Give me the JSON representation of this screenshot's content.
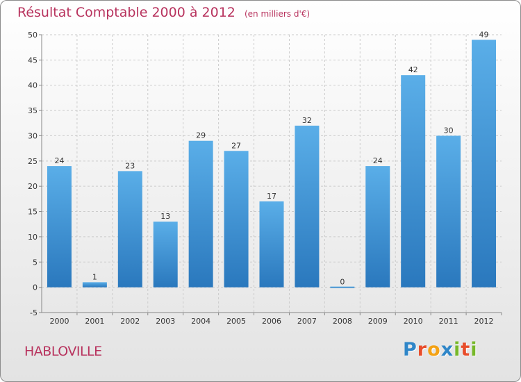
{
  "chart_data": {
    "type": "bar",
    "title": "Résultat Comptable 2000 à 2012",
    "subtitle": "(en milliers d'€)",
    "categories": [
      "2000",
      "2001",
      "2002",
      "2003",
      "2004",
      "2005",
      "2006",
      "2007",
      "2008",
      "2009",
      "2010",
      "2011",
      "2012"
    ],
    "values": [
      24,
      1,
      23,
      13,
      29,
      27,
      17,
      32,
      0,
      24,
      42,
      30,
      49
    ],
    "data_labels": [
      "24",
      "1",
      "23",
      "13",
      "29",
      "27",
      "17",
      "32",
      "0",
      "24",
      "42",
      "30",
      "49"
    ],
    "ylim": [
      -5,
      50
    ],
    "yticks": [
      -5,
      0,
      5,
      10,
      15,
      20,
      25,
      30,
      35,
      40,
      45,
      50
    ],
    "grid": true,
    "legend": "none",
    "colors": {
      "bar_top": "#5aaee8",
      "bar_bottom": "#2a78bd",
      "grid": "#cccccc",
      "axis": "#888888",
      "title": "#b8335e"
    }
  },
  "footer": {
    "commune": "HABLOVILLE"
  },
  "logo": {
    "letters": [
      "P",
      "r",
      "o",
      "x",
      "i",
      "t",
      "i"
    ]
  }
}
